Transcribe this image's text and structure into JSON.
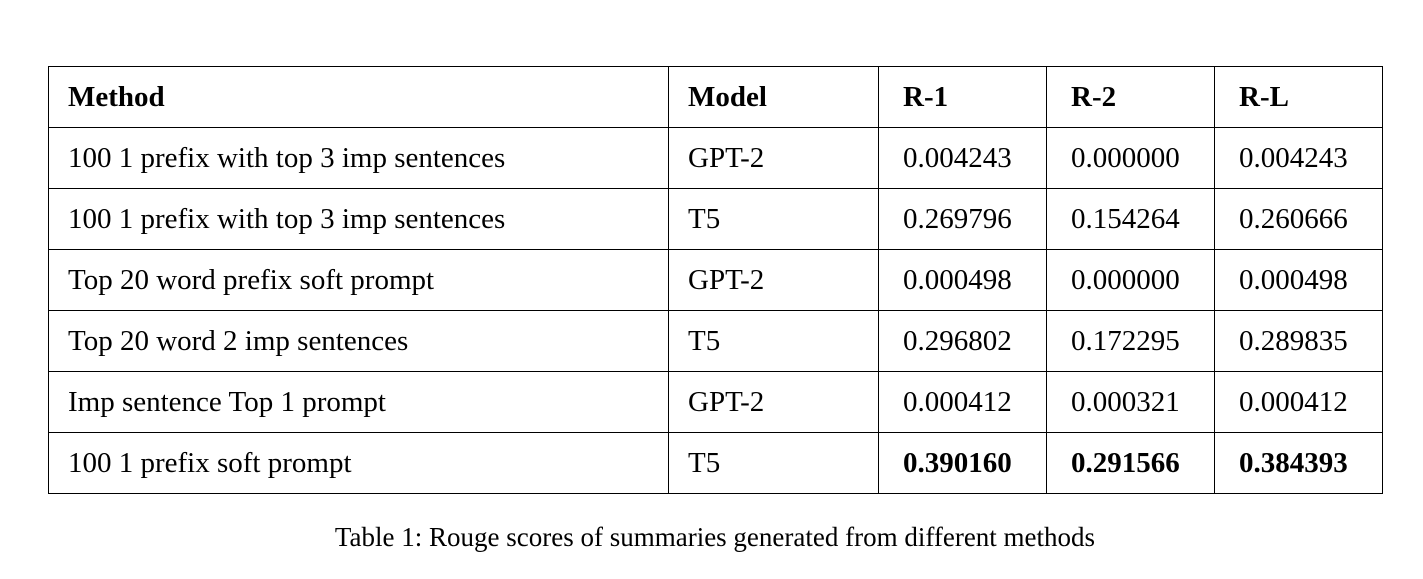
{
  "table": {
    "headers": [
      "Method",
      "Model",
      "R-1",
      "R-2",
      "R-L"
    ],
    "rows": [
      {
        "method": "100 1 prefix with top 3 imp sentences",
        "model": "GPT-2",
        "r1": "0.004243",
        "r2": "0.000000",
        "rl": "0.004243",
        "best": false
      },
      {
        "method": "100 1 prefix with top 3 imp sentences",
        "model": "T5",
        "r1": "0.269796",
        "r2": "0.154264",
        "rl": "0.260666",
        "best": false
      },
      {
        "method": "Top 20 word prefix soft prompt",
        "model": "GPT-2",
        "r1": "0.000498",
        "r2": "0.000000",
        "rl": "0.000498",
        "best": false
      },
      {
        "method": "Top 20 word 2 imp sentences",
        "model": "T5",
        "r1": "0.296802",
        "r2": "0.172295",
        "rl": "0.289835",
        "best": false
      },
      {
        "method": "Imp sentence Top 1 prompt",
        "model": "GPT-2",
        "r1": "0.000412",
        "r2": "0.000321",
        "rl": "0.000412",
        "best": false
      },
      {
        "method": "100 1 prefix soft prompt",
        "model": "T5",
        "r1": "0.390160",
        "r2": "0.291566",
        "rl": "0.384393",
        "best": true
      }
    ]
  },
  "caption": "Table 1: Rouge scores of summaries generated from different methods"
}
